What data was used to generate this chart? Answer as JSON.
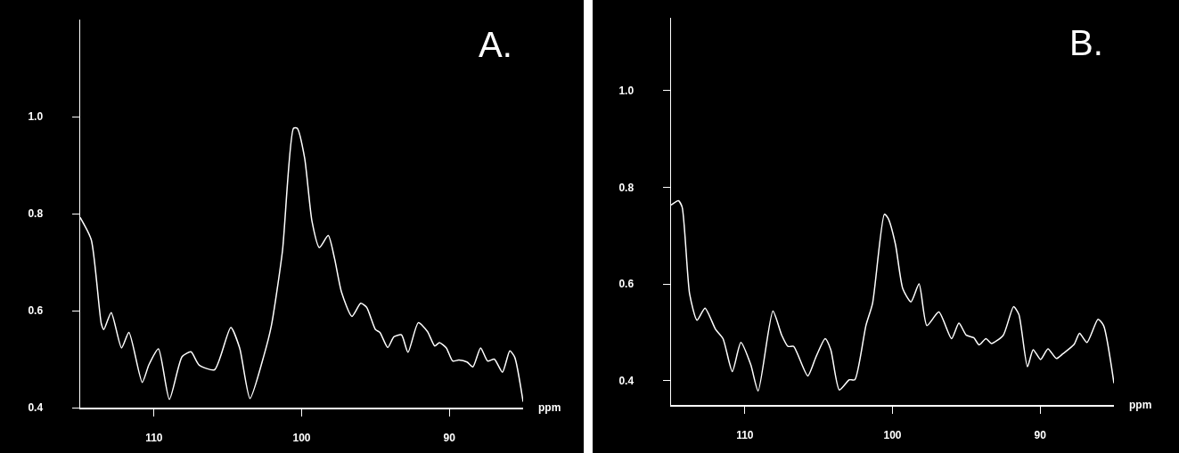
{
  "chart_data": [
    {
      "type": "line",
      "title": "A.",
      "xlabel": "ppm",
      "xlim": [
        115,
        85
      ],
      "xticks": [
        110,
        100,
        90
      ],
      "ylim": [
        0.4,
        1.2
      ],
      "yticks": [
        0.4,
        0.6,
        0.8,
        {
          "value": 1,
          "label": "1.0"
        }
      ],
      "x": [
        115,
        114.25,
        113.57,
        113.4,
        112.9,
        112.2,
        111.7,
        110.8,
        110.35,
        109.7,
        108.96,
        108.1,
        107.5,
        106.95,
        105.9,
        104.8,
        104.2,
        103.5,
        102.55,
        102.05,
        101.3,
        100.55,
        100.3,
        99.8,
        99.3,
        98.8,
        98.2,
        97.77,
        97.3,
        96.6,
        96.0,
        95.6,
        95.0,
        94.7,
        94.17,
        93.75,
        93.24,
        92.8,
        92.1,
        91.48,
        90.98,
        90.67,
        90.2,
        89.77,
        89.35,
        88.8,
        88.4,
        87.88,
        87.4,
        86.95,
        86.4,
        85.9,
        85.57,
        85
      ],
      "series": [
        {
          "color": "#ffffff",
          "values": [
            0.792,
            0.746,
            0.573,
            0.561,
            0.596,
            0.523,
            0.555,
            0.452,
            0.488,
            0.521,
            0.417,
            0.505,
            0.515,
            0.488,
            0.478,
            0.565,
            0.523,
            0.419,
            0.508,
            0.569,
            0.723,
            0.976,
            0.976,
            0.915,
            0.784,
            0.73,
            0.755,
            0.707,
            0.638,
            0.588,
            0.615,
            0.607,
            0.561,
            0.555,
            0.524,
            0.546,
            0.55,
            0.514,
            0.575,
            0.557,
            0.527,
            0.534,
            0.523,
            0.496,
            0.498,
            0.494,
            0.484,
            0.523,
            0.496,
            0.5,
            0.473,
            0.517,
            0.504,
            0.412
          ]
        }
      ]
    },
    {
      "type": "line",
      "title": "B.",
      "xlabel": "ppm",
      "xlim": [
        115,
        85
      ],
      "xticks": [
        110,
        100,
        90
      ],
      "ylim": [
        0.35,
        1.15
      ],
      "yticks": [
        0.4,
        0.6,
        0.8,
        {
          "value": 1,
          "label": "1.0"
        }
      ],
      "x": [
        115,
        114.5,
        114.25,
        113.74,
        113.24,
        112.7,
        111.98,
        111.48,
        110.85,
        110.27,
        109.6,
        109.1,
        108.1,
        107.5,
        107.08,
        106.7,
        105.74,
        105.2,
        104.56,
        104.18,
        103.6,
        102.93,
        102.55,
        101.8,
        101.35,
        100.55,
        100.3,
        99.8,
        99.3,
        98.75,
        98.2,
        97.67,
        96.86,
        96.0,
        95.5,
        95.0,
        94.5,
        94.13,
        93.67,
        93.3,
        92.5,
        91.8,
        91.44,
        90.86,
        90.47,
        89.97,
        89.47,
        88.9,
        88.45,
        87.7,
        87.33,
        86.83,
        86.08,
        85.7,
        85
      ],
      "series": [
        {
          "color": "#ffffff",
          "values": [
            0.763,
            0.772,
            0.759,
            0.579,
            0.525,
            0.55,
            0.506,
            0.487,
            0.419,
            0.479,
            0.433,
            0.379,
            0.544,
            0.494,
            0.471,
            0.471,
            0.41,
            0.448,
            0.487,
            0.464,
            0.381,
            0.402,
            0.402,
            0.514,
            0.56,
            0.744,
            0.736,
            0.682,
            0.59,
            0.563,
            0.6,
            0.514,
            0.542,
            0.487,
            0.519,
            0.494,
            0.489,
            0.474,
            0.487,
            0.477,
            0.494,
            0.553,
            0.537,
            0.429,
            0.464,
            0.444,
            0.466,
            0.446,
            0.456,
            0.475,
            0.498,
            0.479,
            0.527,
            0.514,
            0.395
          ]
        }
      ]
    }
  ]
}
